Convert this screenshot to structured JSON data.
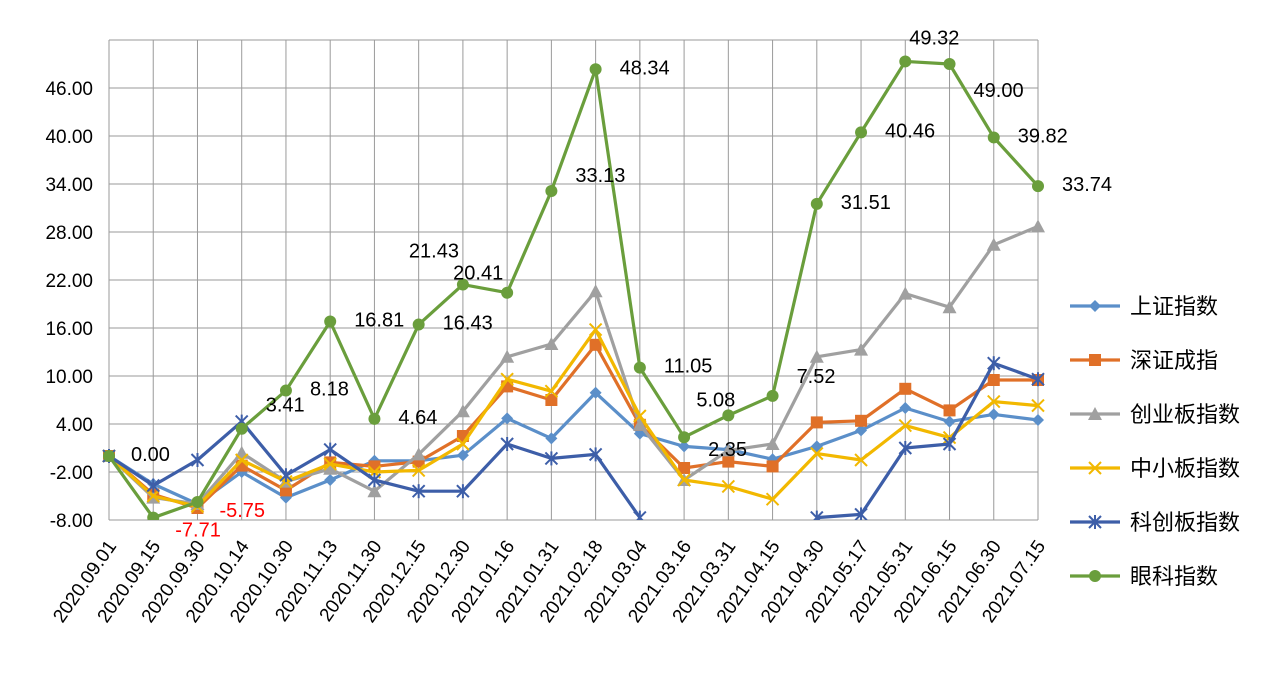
{
  "chart_data": {
    "type": "line",
    "title": "",
    "xlabel": "",
    "ylabel": "",
    "ylim": [
      -8,
      52
    ],
    "yticks": [
      -8,
      -2,
      4,
      10,
      16,
      22,
      28,
      34,
      40,
      46
    ],
    "ytick_labels": [
      "-8.00",
      "-2.00",
      "4.00",
      "10.00",
      "16.00",
      "22.00",
      "28.00",
      "34.00",
      "40.00",
      "46.00"
    ],
    "grid": true,
    "legend_position": "right",
    "categories": [
      "2020.09.01",
      "2020.09.15",
      "2020.09.30",
      "2020.10.14",
      "2020.10.30",
      "2020.11.13",
      "2020.11.30",
      "2020.12.15",
      "2020.12.30",
      "2021.01.16",
      "2021.01.31",
      "2021.02.18",
      "2021.03.04",
      "2021.03.16",
      "2021.03.31",
      "2021.04.15",
      "2021.04.30",
      "2021.05.17",
      "2021.05.31",
      "2021.06.15",
      "2021.06.30",
      "2021.07.15"
    ],
    "series": [
      {
        "name": "上证指数",
        "color": "#5b8fc9",
        "marker": "diamond",
        "values": [
          0,
          -3.5,
          -6.0,
          -2.0,
          -5.2,
          -3.0,
          -0.6,
          -0.6,
          0.1,
          4.7,
          2.2,
          7.9,
          2.8,
          1.2,
          0.8,
          -0.4,
          1.2,
          3.2,
          6.0,
          4.3,
          5.2,
          4.5
        ]
      },
      {
        "name": "深证成指",
        "color": "#e07028",
        "marker": "square",
        "values": [
          0,
          -4.8,
          -6.5,
          -1.2,
          -4.3,
          -0.8,
          -1.3,
          -0.7,
          2.5,
          8.7,
          7.0,
          13.9,
          3.9,
          -1.5,
          -0.7,
          -1.3,
          4.2,
          4.4,
          8.4,
          5.7,
          9.5,
          9.5
        ]
      },
      {
        "name": "创业板指数",
        "color": "#a0a0a0",
        "marker": "triangle",
        "values": [
          0,
          -5.2,
          -6.0,
          0.4,
          -3.2,
          -1.6,
          -4.4,
          0.2,
          5.6,
          12.4,
          14.0,
          20.6,
          3.9,
          -3.0,
          0.7,
          1.5,
          12.4,
          13.3,
          20.3,
          18.6,
          26.4,
          28.7
        ]
      },
      {
        "name": "中小板指数",
        "color": "#f2b800",
        "marker": "x",
        "values": [
          0,
          -5.0,
          -6.3,
          -0.5,
          -3.2,
          -1.0,
          -2.0,
          -1.8,
          1.5,
          9.6,
          8.1,
          15.8,
          5.0,
          -3.0,
          -3.8,
          -5.4,
          0.3,
          -0.5,
          3.8,
          2.3,
          6.8,
          6.3
        ]
      },
      {
        "name": "科创板指数",
        "color": "#3d5ea8",
        "marker": "asterisk",
        "values": [
          0,
          -3.7,
          -0.5,
          4.3,
          -2.4,
          0.8,
          -3.0,
          -4.4,
          -4.4,
          1.5,
          -0.3,
          0.2,
          -7.7,
          null,
          null,
          null,
          -7.7,
          -7.3,
          1.0,
          1.5,
          11.6,
          9.6
        ]
      },
      {
        "name": "眼科指数",
        "color": "#6a9e3c",
        "marker": "circle",
        "values": [
          0,
          -7.71,
          -5.75,
          3.41,
          8.18,
          16.81,
          4.64,
          16.43,
          21.43,
          20.41,
          33.13,
          48.34,
          11.05,
          2.35,
          5.08,
          7.52,
          31.51,
          40.46,
          49.32,
          49.0,
          39.82,
          33.74
        ]
      }
    ],
    "data_labels": [
      {
        "series": "眼科指数",
        "index": 0,
        "text": "0.00",
        "color": "#000000"
      },
      {
        "series": "眼科指数",
        "index": 1,
        "text": "-7.71",
        "color": "#ff0000"
      },
      {
        "series": "眼科指数",
        "index": 2,
        "text": "-5.75",
        "color": "#ff0000"
      },
      {
        "series": "眼科指数",
        "index": 3,
        "text": "3.41",
        "color": "#000000"
      },
      {
        "series": "眼科指数",
        "index": 4,
        "text": "8.18",
        "color": "#000000"
      },
      {
        "series": "眼科指数",
        "index": 5,
        "text": "16.81",
        "color": "#000000"
      },
      {
        "series": "眼科指数",
        "index": 6,
        "text": "4.64",
        "color": "#000000"
      },
      {
        "series": "眼科指数",
        "index": 7,
        "text": "16.43",
        "color": "#000000"
      },
      {
        "series": "眼科指数",
        "index": 8,
        "text": "21.43",
        "color": "#000000"
      },
      {
        "series": "眼科指数",
        "index": 9,
        "text": "20.41",
        "color": "#000000"
      },
      {
        "series": "眼科指数",
        "index": 10,
        "text": "33.13",
        "color": "#000000"
      },
      {
        "series": "眼科指数",
        "index": 11,
        "text": "48.34",
        "color": "#000000"
      },
      {
        "series": "眼科指数",
        "index": 12,
        "text": "11.05",
        "color": "#000000"
      },
      {
        "series": "眼科指数",
        "index": 13,
        "text": "2.35",
        "color": "#000000"
      },
      {
        "series": "眼科指数",
        "index": 14,
        "text": "5.08",
        "color": "#000000"
      },
      {
        "series": "眼科指数",
        "index": 15,
        "text": "7.52",
        "color": "#000000"
      },
      {
        "series": "眼科指数",
        "index": 16,
        "text": "31.51",
        "color": "#000000"
      },
      {
        "series": "眼科指数",
        "index": 17,
        "text": "40.46",
        "color": "#000000"
      },
      {
        "series": "眼科指数",
        "index": 18,
        "text": "49.32",
        "color": "#000000"
      },
      {
        "series": "眼科指数",
        "index": 19,
        "text": "49.00",
        "color": "#000000"
      },
      {
        "series": "眼科指数",
        "index": 20,
        "text": "39.82",
        "color": "#000000"
      },
      {
        "series": "眼科指数",
        "index": 21,
        "text": "33.74",
        "color": "#000000"
      }
    ]
  }
}
